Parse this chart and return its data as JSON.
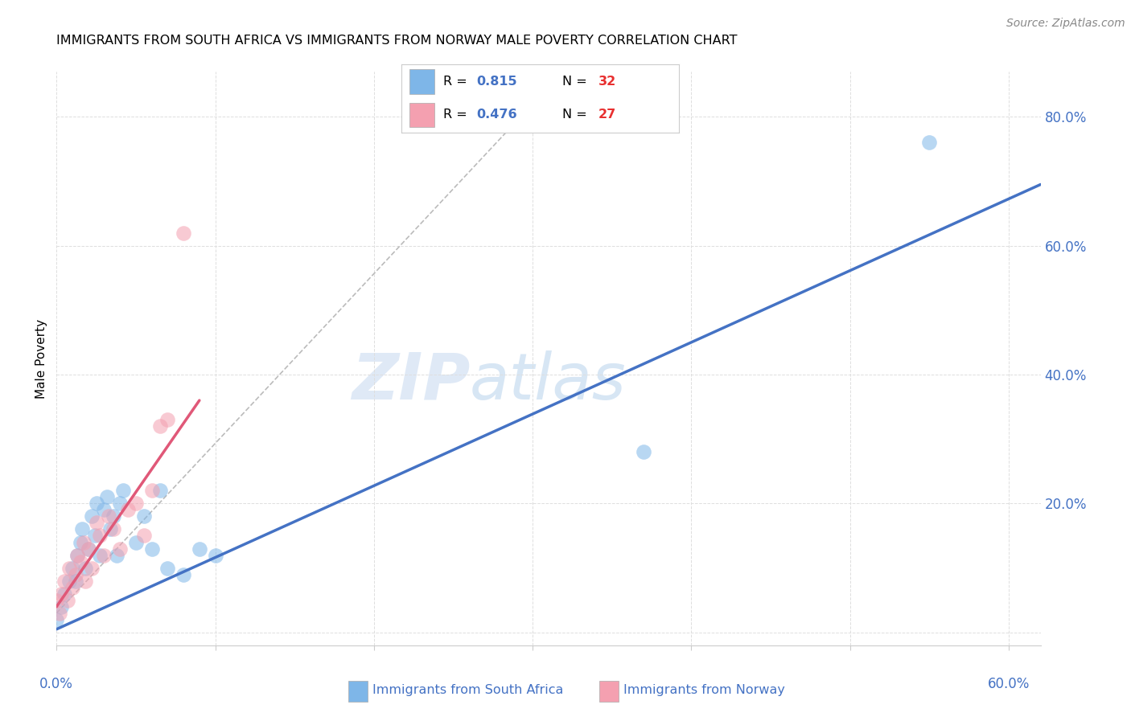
{
  "title": "IMMIGRANTS FROM SOUTH AFRICA VS IMMIGRANTS FROM NORWAY MALE POVERTY CORRELATION CHART",
  "source": "Source: ZipAtlas.com",
  "ylabel": "Male Poverty",
  "xlim": [
    0.0,
    0.62
  ],
  "ylim": [
    -0.02,
    0.87
  ],
  "color_blue": "#7EB6E8",
  "color_pink": "#F4A0B0",
  "line_blue": "#4472C4",
  "line_pink": "#E05878",
  "line_gray": "#BBBBBB",
  "watermark_zip": "ZIP",
  "watermark_atlas": "atlas",
  "south_africa_x": [
    0.0,
    0.003,
    0.005,
    0.008,
    0.01,
    0.012,
    0.013,
    0.015,
    0.016,
    0.018,
    0.02,
    0.022,
    0.024,
    0.025,
    0.027,
    0.03,
    0.032,
    0.034,
    0.036,
    0.038,
    0.04,
    0.042,
    0.05,
    0.055,
    0.06,
    0.065,
    0.07,
    0.08,
    0.09,
    0.1,
    0.37,
    0.55
  ],
  "south_africa_y": [
    0.02,
    0.04,
    0.06,
    0.08,
    0.1,
    0.08,
    0.12,
    0.14,
    0.16,
    0.1,
    0.13,
    0.18,
    0.15,
    0.2,
    0.12,
    0.19,
    0.21,
    0.16,
    0.18,
    0.12,
    0.2,
    0.22,
    0.14,
    0.18,
    0.13,
    0.22,
    0.1,
    0.09,
    0.13,
    0.12,
    0.28,
    0.76
  ],
  "norway_x": [
    0.0,
    0.002,
    0.003,
    0.005,
    0.007,
    0.008,
    0.01,
    0.012,
    0.013,
    0.015,
    0.017,
    0.018,
    0.02,
    0.022,
    0.025,
    0.027,
    0.03,
    0.033,
    0.036,
    0.04,
    0.045,
    0.05,
    0.055,
    0.06,
    0.065,
    0.07,
    0.08
  ],
  "norway_y": [
    0.05,
    0.03,
    0.06,
    0.08,
    0.05,
    0.1,
    0.07,
    0.09,
    0.12,
    0.11,
    0.14,
    0.08,
    0.13,
    0.1,
    0.17,
    0.15,
    0.12,
    0.18,
    0.16,
    0.13,
    0.19,
    0.2,
    0.15,
    0.22,
    0.32,
    0.33,
    0.62
  ],
  "blue_trend_x": [
    0.0,
    0.62
  ],
  "blue_trend_y": [
    0.005,
    0.695
  ],
  "pink_trend_x": [
    0.0,
    0.09
  ],
  "pink_trend_y": [
    0.04,
    0.36
  ],
  "gray_trend_x": [
    0.0,
    0.3
  ],
  "gray_trend_y": [
    0.03,
    0.82
  ]
}
